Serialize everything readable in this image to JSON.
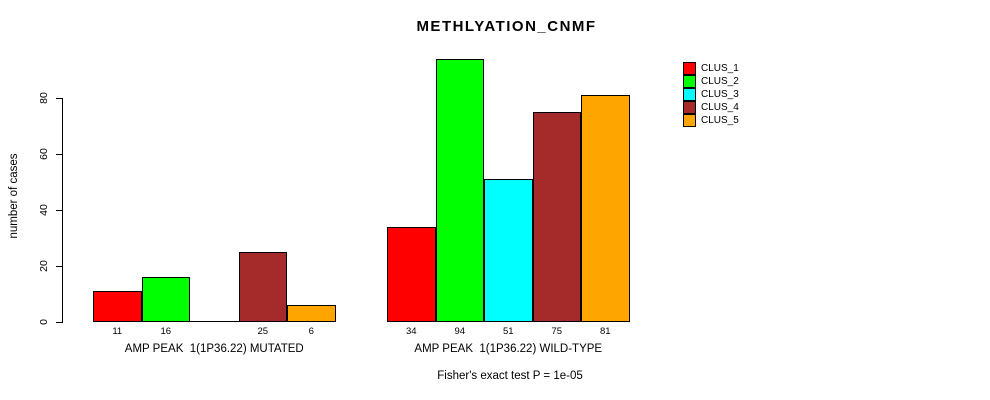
{
  "title": "METHLYATION_CNMF",
  "footer": "Fisher's exact test P = 1e-05",
  "chart_data": {
    "type": "bar",
    "title": "METHLYATION_CNMF",
    "xlabel": "",
    "ylabel": "number of cases",
    "ylim": [
      0,
      94
    ],
    "yticks": [
      "0",
      "20",
      "40",
      "60",
      "80"
    ],
    "ytick_values": [
      0,
      20,
      40,
      60,
      80
    ],
    "grid": false,
    "legend_position": "top-right",
    "series": [
      {
        "name": "CLUS_1",
        "color": "#FF0000",
        "values": [
          11,
          34
        ]
      },
      {
        "name": "CLUS_2",
        "color": "#00FF00",
        "values": [
          16,
          94
        ]
      },
      {
        "name": "CLUS_3",
        "color": "#00FFFF",
        "values": [
          0,
          51
        ]
      },
      {
        "name": "CLUS_4",
        "color": "#A52A2A",
        "values": [
          25,
          75
        ]
      },
      {
        "name": "CLUS_5",
        "color": "#FFA500",
        "values": [
          6,
          81
        ]
      }
    ],
    "groups": [
      {
        "label": "AMP PEAK  1(1P36.22) MUTATED",
        "values": [
          11,
          16,
          0,
          25,
          6
        ],
        "value_labels": [
          "11",
          "16",
          "",
          "25",
          "6"
        ]
      },
      {
        "label": "AMP PEAK  1(1P36.22) WILD-TYPE",
        "values": [
          34,
          94,
          51,
          75,
          81
        ],
        "value_labels": [
          "34",
          "94",
          "51",
          "75",
          "81"
        ]
      }
    ],
    "legend": {
      "items": [
        {
          "label": "CLUS_1",
          "color": "#FF0000"
        },
        {
          "label": "CLUS_2",
          "color": "#00FF00"
        },
        {
          "label": "CLUS_3",
          "color": "#00FFFF"
        },
        {
          "label": "CLUS_4",
          "color": "#A52A2A"
        },
        {
          "label": "CLUS_5",
          "color": "#FFA500"
        }
      ]
    }
  }
}
